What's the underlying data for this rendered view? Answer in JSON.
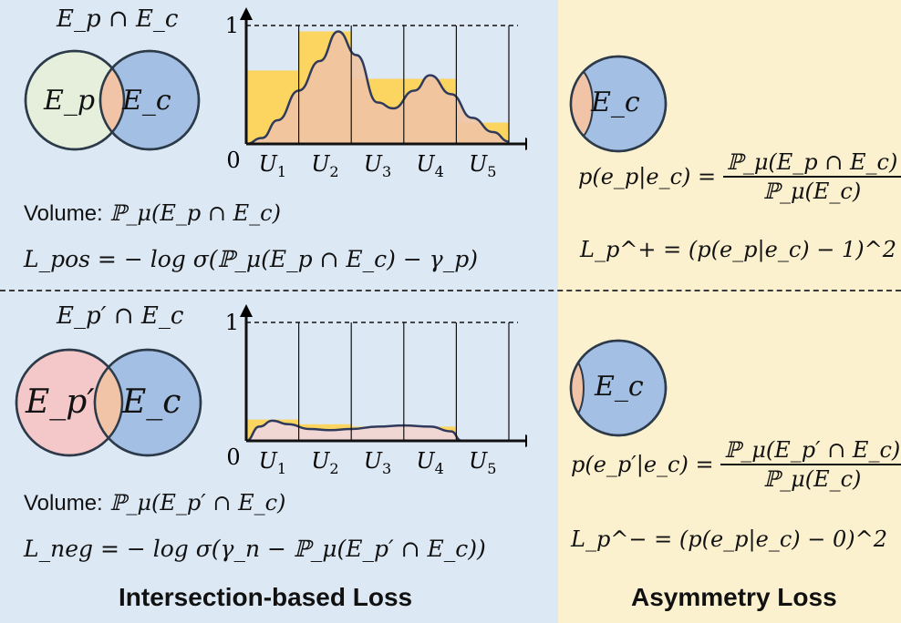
{
  "colors": {
    "left_bg": "#dce8f4",
    "right_bg": "#fcf1cf",
    "circle_ep": "#e5efdb",
    "circle_ep_neg": "#f4c7c9",
    "circle_ec": "#a3bfe3",
    "intersection": "#f1c4a7",
    "bar_fill": "#fbd55f",
    "curve_fill_pos": "#f0c4a5",
    "curve_fill_neg": "#f0d7e0",
    "curve_stroke": "#2f3a5c"
  },
  "top": {
    "intersection_label": "E_p ∩ E_c",
    "venn_left_label": "E_p",
    "venn_right_label": "E_c",
    "volume_label": "Volume:",
    "volume_expr": "ℙ_μ(E_p ∩ E_c)",
    "loss_expr": "L_pos = − log σ(ℙ_μ(E_p ∩ E_c) − γ_p)",
    "asym_circle_label": "E_c",
    "cond_prob_lhs": "p(e_p|e_c) =",
    "cond_prob_num": "ℙ_μ(E_p ∩ E_c)",
    "cond_prob_den": "ℙ_μ(E_c)",
    "asym_loss": "L_p^+ = (p(e_p|e_c) − 1)^2"
  },
  "bottom": {
    "intersection_label": "E_p′ ∩ E_c",
    "venn_left_label": "E_p′",
    "venn_right_label": "E_c",
    "volume_label": "Volume:",
    "volume_expr": "ℙ_μ(E_p′ ∩ E_c)",
    "loss_expr": "L_neg = − log σ(γ_n − ℙ_μ(E_p′ ∩ E_c))",
    "asym_circle_label": "E_c",
    "cond_prob_lhs": "p(e_p′|e_c) =",
    "cond_prob_num": "ℙ_μ(E_p′ ∩ E_c)",
    "cond_prob_den": "ℙ_μ(E_c)",
    "asym_loss": "L_p^− = (p(e_p|e_c) − 0)^2"
  },
  "footer": {
    "left": "Intersection-based Loss",
    "right": "Asymmetry Loss"
  },
  "chart_data": [
    {
      "type": "bar",
      "categories": [
        "U1",
        "U2",
        "U3",
        "U4",
        "U5"
      ],
      "tick_labels": [
        "U_1",
        "U_2",
        "U_3",
        "U_4",
        "U_5"
      ],
      "origin_label": "0",
      "y_max_label": "1",
      "values": [
        0.62,
        0.95,
        0.55,
        0.55,
        0.18
      ],
      "curve": [
        [
          0,
          0
        ],
        [
          0.3,
          0.05
        ],
        [
          0.6,
          0.2
        ],
        [
          1.0,
          0.45
        ],
        [
          1.4,
          0.7
        ],
        [
          1.75,
          0.95
        ],
        [
          2.1,
          0.75
        ],
        [
          2.5,
          0.35
        ],
        [
          2.8,
          0.3
        ],
        [
          3.2,
          0.45
        ],
        [
          3.5,
          0.58
        ],
        [
          3.9,
          0.42
        ],
        [
          4.3,
          0.22
        ],
        [
          4.7,
          0.1
        ],
        [
          5,
          0.02
        ]
      ],
      "ylim": [
        0,
        1.2
      ],
      "grid": false
    },
    {
      "type": "bar",
      "categories": [
        "U1",
        "U2",
        "U3",
        "U4",
        "U5"
      ],
      "tick_labels": [
        "U_1",
        "U_2",
        "U_3",
        "U_4",
        "U_5"
      ],
      "origin_label": "0",
      "y_max_label": "1",
      "values": [
        0.18,
        0.14,
        0.12,
        0.12,
        0.0
      ],
      "curve": [
        [
          0,
          0
        ],
        [
          0.25,
          0.12
        ],
        [
          0.5,
          0.17
        ],
        [
          0.8,
          0.14
        ],
        [
          1.2,
          0.1
        ],
        [
          1.6,
          0.09
        ],
        [
          2.0,
          0.1
        ],
        [
          2.5,
          0.12
        ],
        [
          3.0,
          0.13
        ],
        [
          3.5,
          0.12
        ],
        [
          3.9,
          0.08
        ],
        [
          4.1,
          0.0
        ]
      ],
      "ylim": [
        0,
        1.2
      ],
      "grid": false
    }
  ]
}
